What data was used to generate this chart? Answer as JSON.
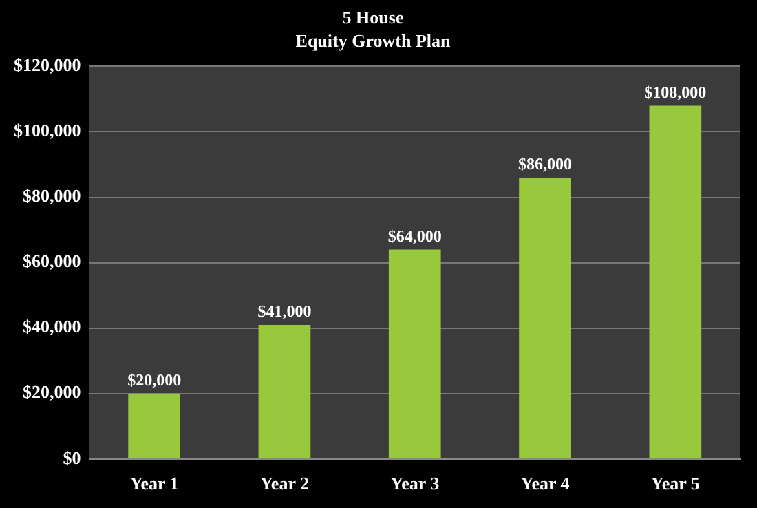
{
  "chart_data": {
    "type": "bar",
    "title": "5 House",
    "subtitle": "Equity Growth Plan",
    "categories": [
      "Year 1",
      "Year 2",
      "Year 3",
      "Year 4",
      "Year 5"
    ],
    "values": [
      20000,
      41000,
      64000,
      86000,
      108000
    ],
    "value_labels": [
      "$20,000",
      "$41,000",
      "$64,000",
      "$86,000",
      "$108,000"
    ],
    "color": "#98c83c",
    "ylim": [
      0,
      120000
    ],
    "yticks": [
      {
        "value": 0,
        "label": "$0"
      },
      {
        "value": 20000,
        "label": "$20,000"
      },
      {
        "value": 40000,
        "label": "$40,000"
      },
      {
        "value": 60000,
        "label": "$60,000"
      },
      {
        "value": 80000,
        "label": "$80,000"
      },
      {
        "value": 100000,
        "label": "$100,000"
      },
      {
        "value": 120000,
        "label": "$120,000"
      }
    ],
    "grid": "y",
    "legend": false
  }
}
